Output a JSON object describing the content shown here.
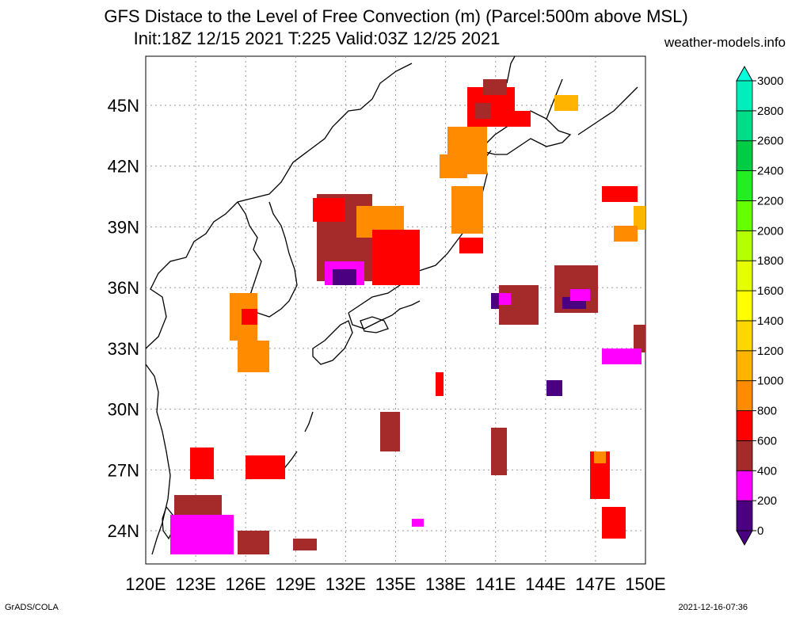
{
  "title_line1": "GFS Distace to the Level of Free Convection (m) (Parcel:500m above MSL)",
  "title_line2": "Init:18Z 12/15 2021 T:225 Valid:03Z 12/25 2021",
  "site": "weather-models.info",
  "footer_left": "GrADS/COLA",
  "footer_right": "2021-12-16-07:36",
  "lon_labels": [
    "120E",
    "123E",
    "126E",
    "129E",
    "132E",
    "135E",
    "138E",
    "141E",
    "144E",
    "147E",
    "150E"
  ],
  "lat_labels": [
    "24N",
    "27N",
    "30N",
    "33N",
    "36N",
    "39N",
    "42N",
    "45N"
  ],
  "colorbar": {
    "levels": [
      "0",
      "200",
      "400",
      "600",
      "800",
      "1000",
      "1200",
      "1400",
      "1600",
      "1800",
      "2000",
      "2200",
      "2400",
      "2600",
      "2800",
      "3000"
    ],
    "colors": [
      "#4b0082",
      "#ff00ff",
      "#a52a2a",
      "#ff0000",
      "#ff8c00",
      "#ffb400",
      "#ffd700",
      "#ffff00",
      "#e6ff00",
      "#b4ff00",
      "#66ff00",
      "#22ee22",
      "#00cc44",
      "#00dd88",
      "#00eebb",
      "#00ffdd"
    ]
  }
}
